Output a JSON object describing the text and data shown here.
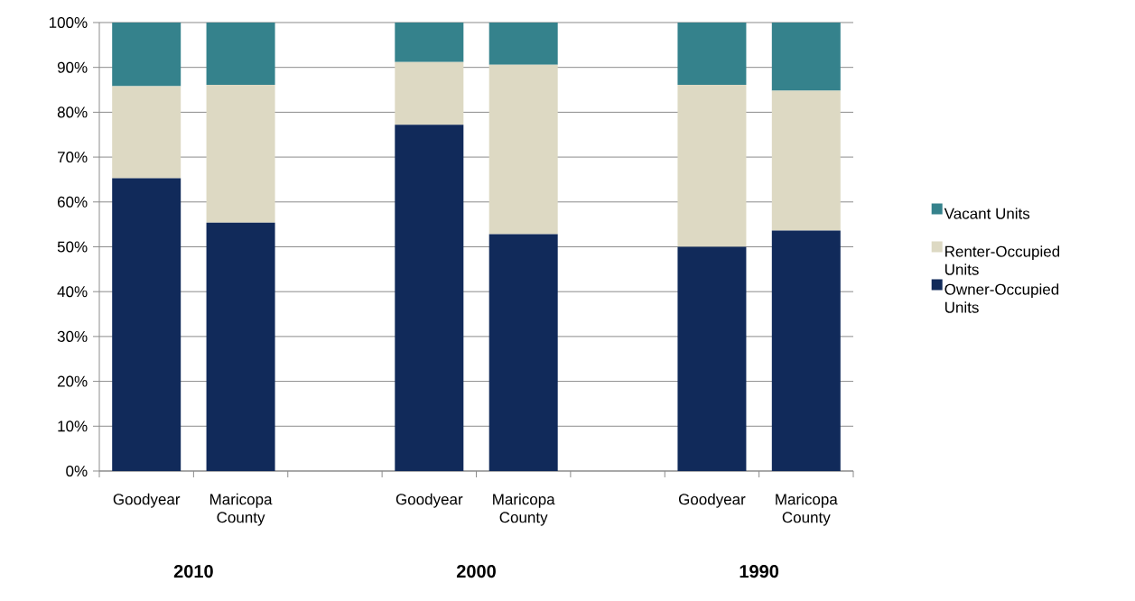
{
  "chart_data": {
    "type": "bar",
    "stacked": true,
    "categories": [
      "Goodyear",
      "Maricopa County",
      null,
      "Goodyear",
      "Maricopa County",
      null,
      "Goodyear",
      "Maricopa County"
    ],
    "series": [
      {
        "name": "Owner-Occupied Units",
        "color": "#112a5a",
        "values": [
          65.3,
          55.4,
          null,
          77.2,
          52.8,
          null,
          50.0,
          53.6
        ]
      },
      {
        "name": "Renter-Occupied Units",
        "color": "#ddd9c3",
        "values": [
          20.5,
          30.7,
          null,
          14.0,
          37.8,
          null,
          36.1,
          31.2
        ]
      },
      {
        "name": "Vacant Units",
        "color": "#35828c",
        "values": [
          14.2,
          13.9,
          null,
          8.8,
          9.4,
          null,
          13.9,
          15.2
        ]
      }
    ],
    "ylim": [
      0,
      100
    ],
    "yticks": [
      {
        "value": 0,
        "label": "0%"
      },
      {
        "value": 10,
        "label": "10%"
      },
      {
        "value": 20,
        "label": "20%"
      },
      {
        "value": 30,
        "label": "30%"
      },
      {
        "value": 40,
        "label": "40%"
      },
      {
        "value": 50,
        "label": "50%"
      },
      {
        "value": 60,
        "label": "60%"
      },
      {
        "value": 70,
        "label": "70%"
      },
      {
        "value": 80,
        "label": "80%"
      },
      {
        "value": 90,
        "label": "90%"
      },
      {
        "value": 100,
        "label": "100%"
      }
    ],
    "grid": "y",
    "legend": "right",
    "annotations": [
      "2010",
      "2000",
      "1990"
    ]
  }
}
